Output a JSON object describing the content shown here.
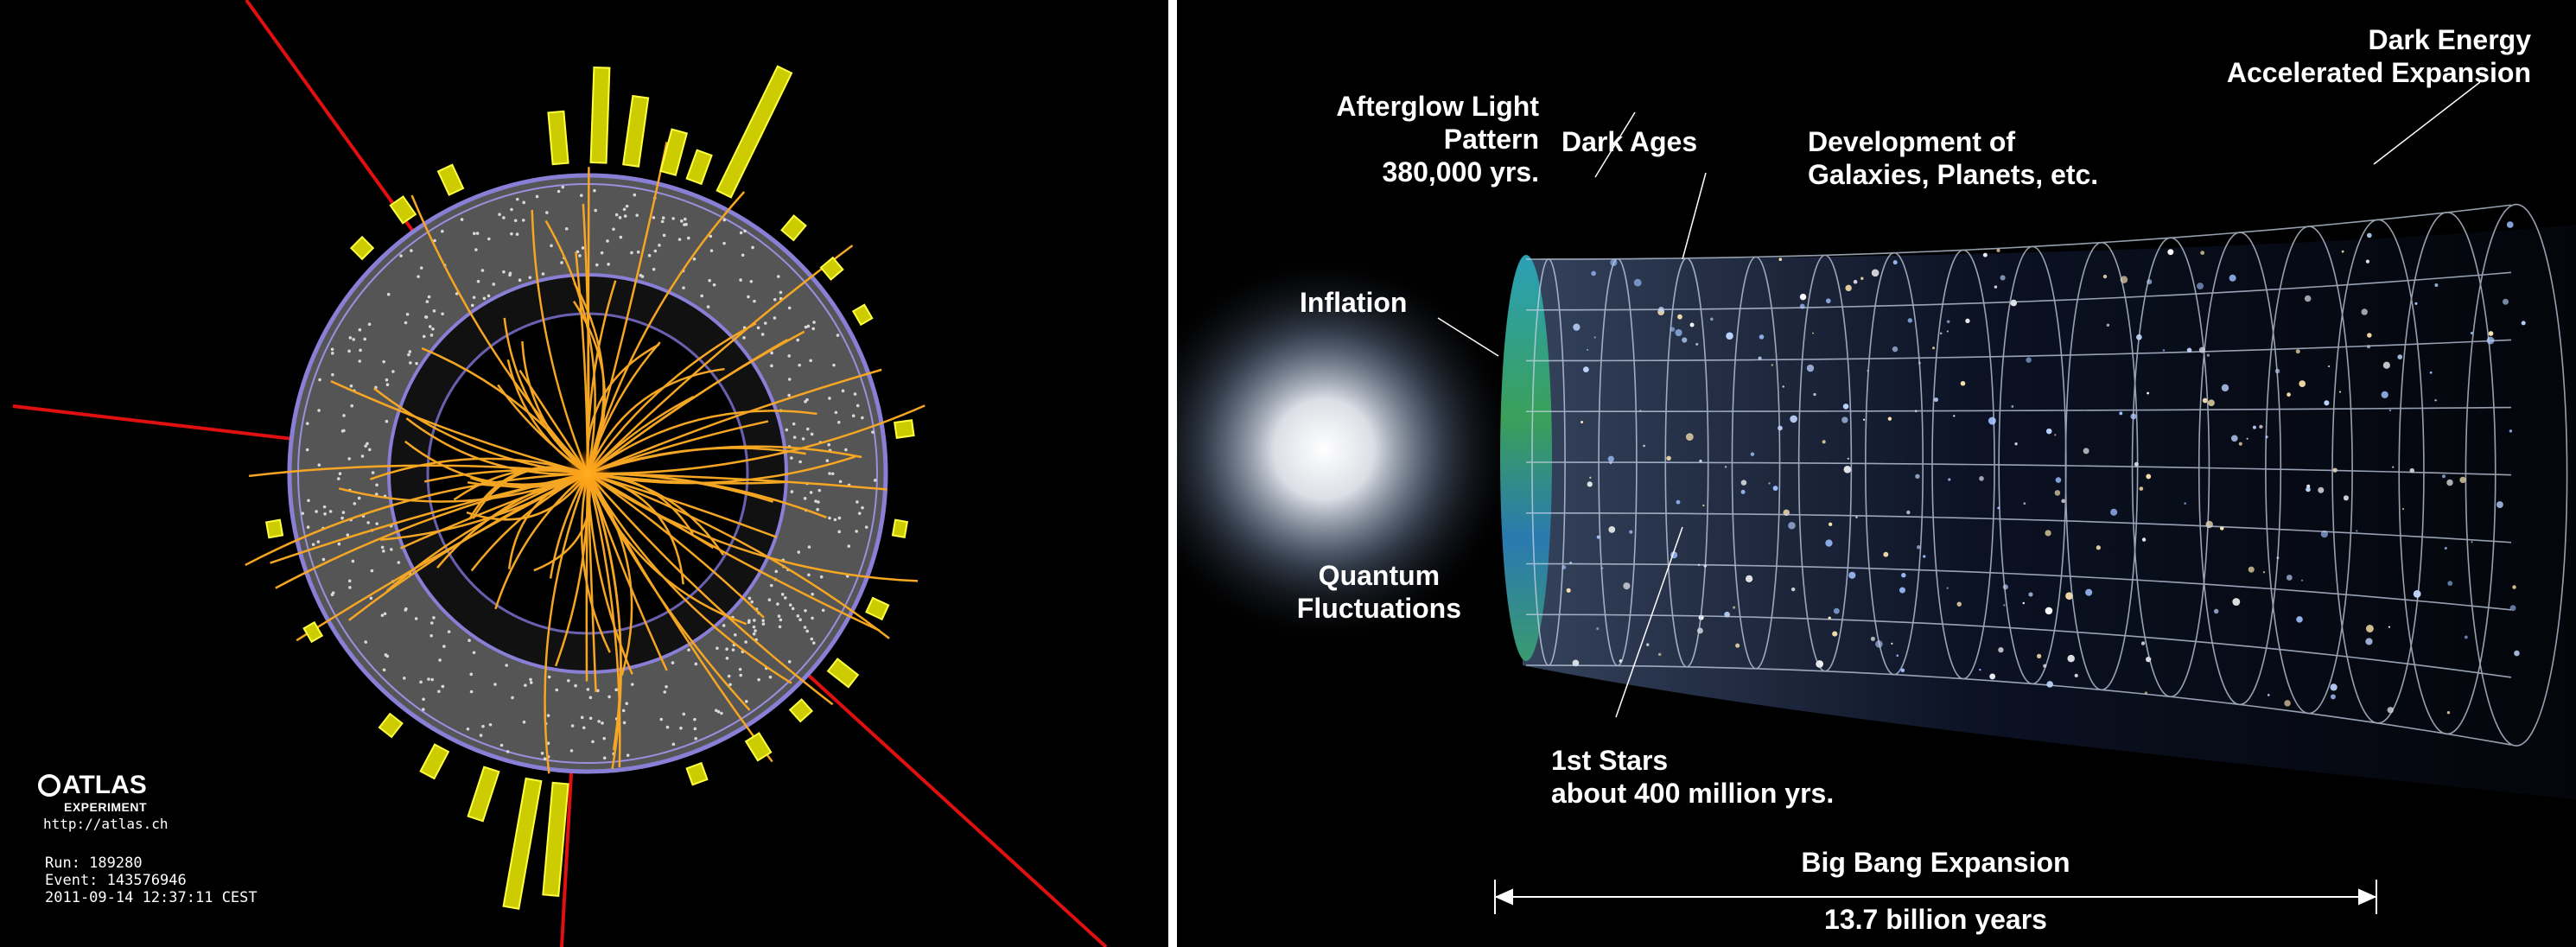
{
  "left_image": {
    "logo": {
      "name": "ATLAS",
      "subtitle": "EXPERIMENT",
      "url": "http://atlas.ch"
    },
    "event_info": {
      "run": "Run: 189280",
      "event": "Event: 143576946",
      "timestamp": "2011-09-14 12:37:11 CEST"
    },
    "colors": {
      "tracks": "#f5a623",
      "muons": "#e01010",
      "calorimeter": "#e6e600",
      "detector_ring": "#8a7fd6"
    }
  },
  "right_image": {
    "labels": {
      "afterglow": "Afterglow Light\nPattern\n380,000 yrs.",
      "dark_ages": "Dark Ages",
      "development": "Development of\nGalaxies, Planets, etc.",
      "dark_energy": "Dark Energy\nAccelerated Expansion",
      "inflation": "Inflation",
      "quantum": "Quantum\nFluctuations",
      "first_stars": "1st Stars\nabout 400 million yrs.",
      "big_bang": "Big Bang Expansion",
      "age": "13.7 billion years"
    },
    "colors": {
      "text": "#ffffff",
      "grid": "#c8d4e8",
      "cmb": "#2a8c6a"
    }
  }
}
